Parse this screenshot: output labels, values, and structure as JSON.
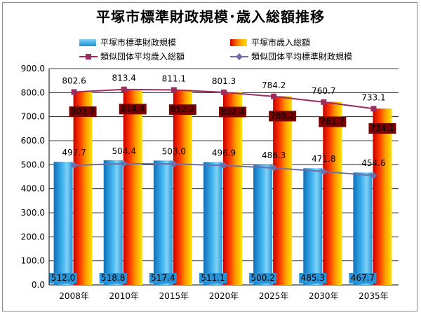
{
  "chart_data": {
    "type": "bar",
    "title": "平塚市標準財政規模･歳入総額推移",
    "categories": [
      "2008年",
      "2010年",
      "2015年",
      "2020年",
      "2025年",
      "2030年",
      "2035年"
    ],
    "ylim": [
      0,
      900
    ],
    "yticks": [
      "0.0",
      "100.0",
      "200.0",
      "300.0",
      "400.0",
      "500.0",
      "600.0",
      "700.0",
      "800.0",
      "900.0"
    ],
    "grid": true,
    "series": [
      {
        "name": "平塚市標準財政規模",
        "kind": "bar",
        "color": "#29a3e0",
        "values": [
          512.0,
          518.8,
          517.4,
          511.1,
          500.2,
          485.3,
          467.7
        ],
        "labels": [
          "512.0",
          "518.8",
          "517.4",
          "511.1",
          "500.2",
          "485.3",
          "467.7"
        ]
      },
      {
        "name": "平塚市歳入総額",
        "kind": "bar",
        "color": "#ff8c00",
        "values": [
          803.7,
          814.4,
          812.2,
          802.4,
          785.2,
          761.7,
          734.1
        ],
        "labels": [
          "803.7",
          "814.4",
          "812.2",
          "802.4",
          "785.2",
          "761.7",
          "734.1"
        ]
      },
      {
        "name": "類似団体平均歳入総額",
        "kind": "line",
        "color": "#9b2d5f",
        "values": [
          802.6,
          813.4,
          811.1,
          801.3,
          784.2,
          760.7,
          733.1
        ],
        "labels": [
          "802.6",
          "813.4",
          "811.1",
          "801.3",
          "784.2",
          "760.7",
          "733.1"
        ]
      },
      {
        "name": "類似団体平均標準財政規模",
        "kind": "line",
        "color": "#6e6ea8",
        "values": [
          497.7,
          504.4,
          503.0,
          496.9,
          486.3,
          471.8,
          454.6
        ],
        "labels": [
          "497.7",
          "504.4",
          "503.0",
          "496.9",
          "486.3",
          "471.8",
          "454.6"
        ]
      }
    ]
  }
}
